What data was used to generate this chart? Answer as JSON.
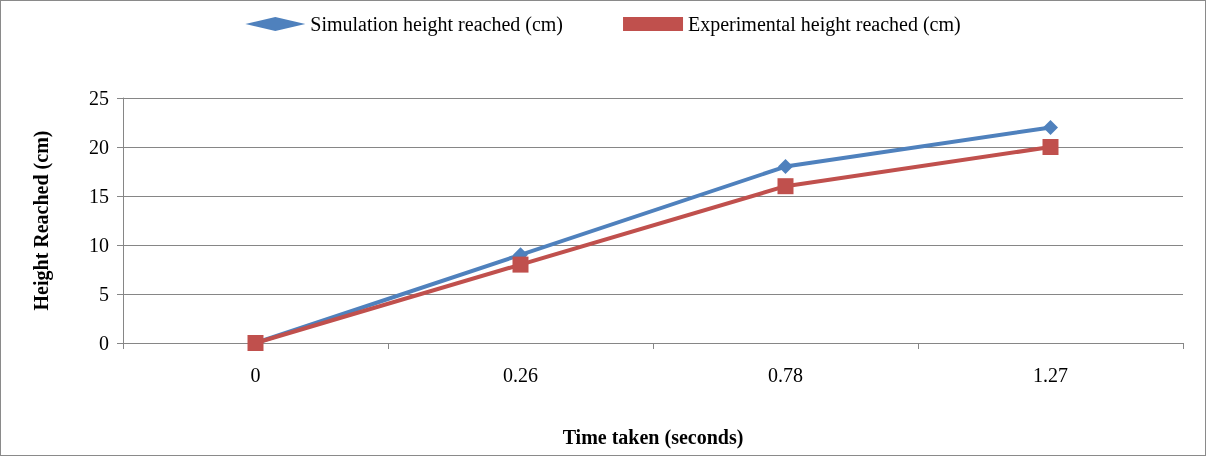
{
  "chart_data": {
    "type": "line",
    "xlabel": "Time taken (seconds)",
    "ylabel": "Height Reached (cm)",
    "categories": [
      "0",
      "0.26",
      "0.78",
      "1.27"
    ],
    "series": [
      {
        "name": "Simulation height reached (cm)",
        "color": "#4f81bd",
        "marker": "diamond",
        "values": [
          0,
          9,
          18,
          22
        ]
      },
      {
        "name": "Experimental height reached (cm)",
        "color": "#c0504d",
        "marker": "square",
        "values": [
          0,
          8,
          16,
          20
        ]
      }
    ],
    "ylim": [
      0,
      25
    ],
    "yticks": [
      0,
      5,
      10,
      15,
      20,
      25
    ],
    "grid": "y",
    "legend": "top",
    "line_style": "solid"
  }
}
